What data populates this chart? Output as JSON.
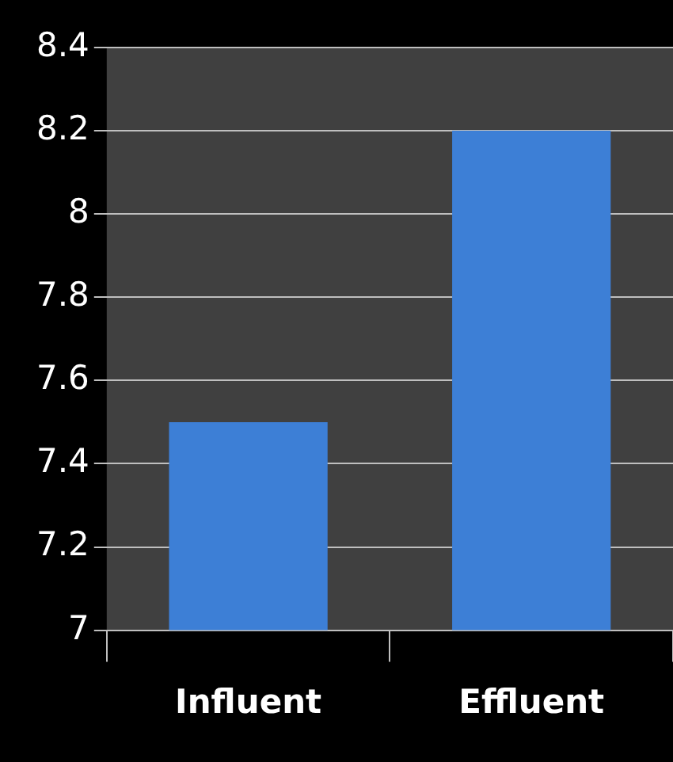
{
  "chart_data": {
    "type": "bar",
    "categories": [
      "Influent",
      "Effluent"
    ],
    "values": [
      7.5,
      8.2
    ],
    "color": "#3d7fd6",
    "ylim": [
      7,
      8.4
    ],
    "yticks": [
      7,
      7.2,
      7.4,
      7.6,
      7.8,
      8,
      8.2,
      8.4
    ],
    "grid": "y"
  }
}
